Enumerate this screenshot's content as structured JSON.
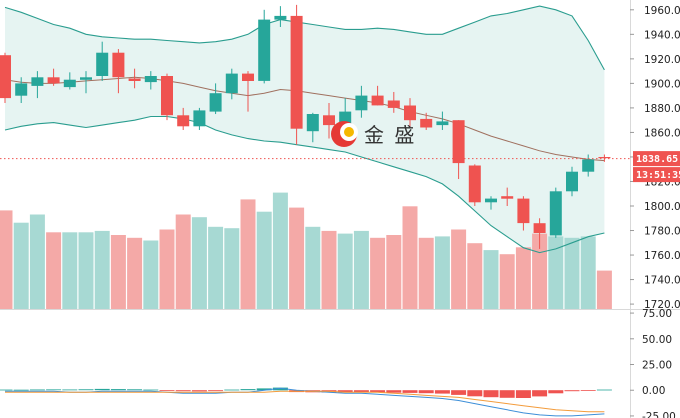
{
  "chart_data": {
    "type": "candlestick",
    "title": "",
    "up_color": "#26a69a",
    "down_color": "#ef5350",
    "band_color": "#2a9d8f",
    "mid_color": "#a0705f",
    "watermark": "金 盛",
    "price_axis": {
      "ticks": [
        "1960.00",
        "1940.00",
        "1920.00",
        "1900.00",
        "1880.00",
        "1860.00",
        "1840.00",
        "1820.00",
        "1800.00",
        "1780.00",
        "1760.00",
        "1740.00",
        "1720.00"
      ],
      "range": [
        1716,
        1968
      ]
    },
    "current_price": {
      "label": "1838.65",
      "value": 1838.65
    },
    "countdown": "13:51:35",
    "macd_axis": {
      "ticks": [
        "75.00",
        "50.00",
        "25.00",
        "0.00",
        "-25.00"
      ],
      "range": [
        -27,
        78
      ]
    },
    "candles": [
      {
        "o": 1923,
        "h": 1925,
        "l": 1884,
        "c": 1888
      },
      {
        "o": 1890,
        "h": 1905,
        "l": 1884,
        "c": 1900
      },
      {
        "o": 1898,
        "h": 1910,
        "l": 1888,
        "c": 1905
      },
      {
        "o": 1905,
        "h": 1912,
        "l": 1898,
        "c": 1900
      },
      {
        "o": 1897,
        "h": 1909,
        "l": 1895,
        "c": 1903
      },
      {
        "o": 1903,
        "h": 1910,
        "l": 1892,
        "c": 1905
      },
      {
        "o": 1906,
        "h": 1934,
        "l": 1902,
        "c": 1925
      },
      {
        "o": 1925,
        "h": 1928,
        "l": 1892,
        "c": 1905
      },
      {
        "o": 1904,
        "h": 1912,
        "l": 1896,
        "c": 1902
      },
      {
        "o": 1901,
        "h": 1910,
        "l": 1895,
        "c": 1906
      },
      {
        "o": 1906,
        "h": 1908,
        "l": 1870,
        "c": 1874
      },
      {
        "o": 1874,
        "h": 1880,
        "l": 1862,
        "c": 1865
      },
      {
        "o": 1865,
        "h": 1880,
        "l": 1862,
        "c": 1878
      },
      {
        "o": 1877,
        "h": 1900,
        "l": 1875,
        "c": 1892
      },
      {
        "o": 1892,
        "h": 1912,
        "l": 1887,
        "c": 1908
      },
      {
        "o": 1908,
        "h": 1910,
        "l": 1877,
        "c": 1902
      },
      {
        "o": 1902,
        "h": 1960,
        "l": 1900,
        "c": 1952
      },
      {
        "o": 1952,
        "h": 1963,
        "l": 1946,
        "c": 1955
      },
      {
        "o": 1955,
        "h": 1964,
        "l": 1850,
        "c": 1863
      },
      {
        "o": 1861,
        "h": 1876,
        "l": 1852,
        "c": 1875
      },
      {
        "o": 1874,
        "h": 1884,
        "l": 1855,
        "c": 1866
      },
      {
        "o": 1866,
        "h": 1888,
        "l": 1860,
        "c": 1877
      },
      {
        "o": 1878,
        "h": 1898,
        "l": 1872,
        "c": 1890
      },
      {
        "o": 1890,
        "h": 1898,
        "l": 1882,
        "c": 1882
      },
      {
        "o": 1886,
        "h": 1893,
        "l": 1876,
        "c": 1880
      },
      {
        "o": 1882,
        "h": 1888,
        "l": 1864,
        "c": 1870
      },
      {
        "o": 1871,
        "h": 1876,
        "l": 1862,
        "c": 1864
      },
      {
        "o": 1866,
        "h": 1877,
        "l": 1862,
        "c": 1869
      },
      {
        "o": 1870,
        "h": 1870,
        "l": 1822,
        "c": 1835
      },
      {
        "o": 1833,
        "h": 1834,
        "l": 1800,
        "c": 1803
      },
      {
        "o": 1803,
        "h": 1808,
        "l": 1797,
        "c": 1806
      },
      {
        "o": 1808,
        "h": 1815,
        "l": 1800,
        "c": 1806
      },
      {
        "o": 1806,
        "h": 1808,
        "l": 1780,
        "c": 1786
      },
      {
        "o": 1786,
        "h": 1790,
        "l": 1765,
        "c": 1778
      },
      {
        "o": 1776,
        "h": 1815,
        "l": 1774,
        "c": 1812
      },
      {
        "o": 1812,
        "h": 1832,
        "l": 1808,
        "c": 1828
      },
      {
        "o": 1828,
        "h": 1842,
        "l": 1824,
        "c": 1838
      },
      {
        "o": 1840,
        "h": 1842,
        "l": 1836,
        "c": 1839
      }
    ],
    "volume": [
      72,
      63,
      69,
      56,
      56,
      56,
      57,
      54,
      52,
      50,
      58,
      69,
      67,
      60,
      59,
      80,
      71,
      85,
      74,
      60,
      57,
      55,
      57,
      52,
      54,
      75,
      52,
      53,
      58,
      48,
      43,
      40,
      45,
      55,
      53,
      52,
      53,
      28
    ],
    "bollinger_upper": [
      1962,
      1958,
      1953,
      1948,
      1945,
      1940,
      1938,
      1937,
      1936,
      1936,
      1935,
      1934,
      1933,
      1934,
      1936,
      1940,
      1948,
      1952,
      1950,
      1948,
      1946,
      1944,
      1944,
      1945,
      1944,
      1942,
      1940,
      1940,
      1945,
      1950,
      1955,
      1957,
      1960,
      1963,
      1960,
      1955,
      1935,
      1911
    ],
    "bollinger_middle": [
      1903,
      1901,
      1900,
      1900,
      1901,
      1902,
      1903,
      1904,
      1905,
      1904,
      1902,
      1900,
      1897,
      1894,
      1892,
      1890,
      1892,
      1895,
      1894,
      1892,
      1890,
      1888,
      1886,
      1884,
      1881,
      1877,
      1874,
      1871,
      1867,
      1862,
      1857,
      1853,
      1849,
      1845,
      1842,
      1840,
      1838,
      1837
    ],
    "bollinger_lower": [
      1862,
      1865,
      1867,
      1868,
      1866,
      1864,
      1866,
      1868,
      1870,
      1873,
      1873,
      1871,
      1868,
      1862,
      1858,
      1855,
      1853,
      1852,
      1850,
      1848,
      1846,
      1844,
      1840,
      1836,
      1832,
      1828,
      1824,
      1818,
      1808,
      1796,
      1784,
      1775,
      1766,
      1762,
      1765,
      1770,
      1775,
      1778
    ],
    "macd_hist": [
      0.6,
      0.5,
      0.7,
      0.8,
      0.7,
      0.9,
      1.3,
      1.1,
      0.9,
      0.6,
      -0.6,
      -1.0,
      -1.2,
      -0.9,
      0.6,
      1.1,
      1.8,
      2.6,
      -1.8,
      -2.0,
      -2.2,
      -2.0,
      -1.8,
      -2.1,
      -2.4,
      -2.6,
      -2.9,
      -3.3,
      -4.6,
      -5.9,
      -6.8,
      -7.4,
      -7.6,
      -6.0,
      -3.0,
      -1.0,
      -0.6,
      0.6
    ],
    "macd_line": [
      -1,
      -1,
      -1,
      -1,
      -2,
      -2,
      -1,
      -1,
      -1,
      -1,
      -2,
      -3,
      -3,
      -3,
      -2,
      -2,
      0,
      2,
      0,
      -1,
      -2,
      -3,
      -3,
      -4,
      -5,
      -6,
      -7,
      -8,
      -10,
      -13,
      -16,
      -19,
      -22,
      -24,
      -25,
      -25,
      -24,
      -23
    ],
    "signal_line": [
      -2,
      -2,
      -2,
      -2,
      -2,
      -2,
      -2,
      -2,
      -2,
      -2,
      -2,
      -2,
      -2,
      -2,
      -2,
      -2,
      -2,
      -1,
      -1,
      -1,
      -1,
      -2,
      -2,
      -2,
      -3,
      -4,
      -5,
      -6,
      -7,
      -9,
      -11,
      -13,
      -15,
      -17,
      -19,
      -20,
      -21,
      -21
    ]
  }
}
